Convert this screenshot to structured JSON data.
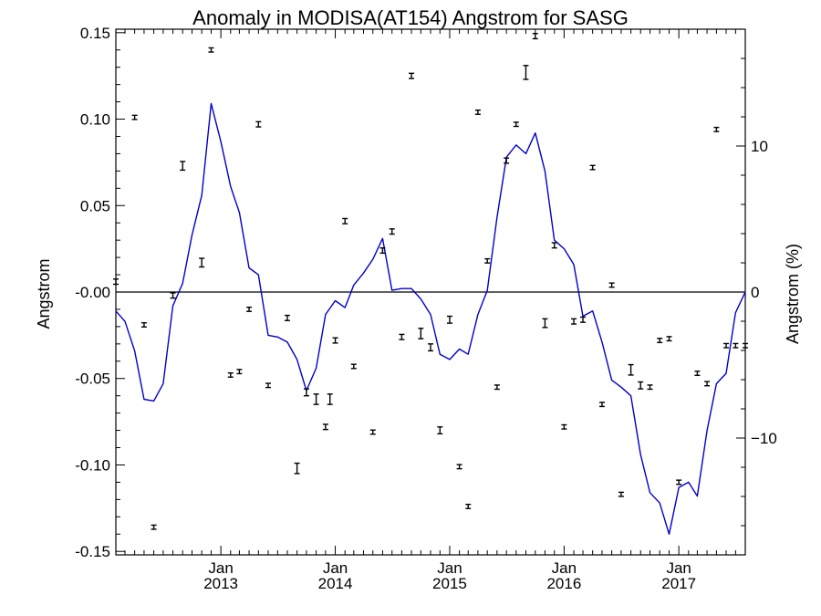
{
  "chart_data": {
    "type": "line",
    "title": "Anomaly in MODISA(AT154) Angstrom for SASG",
    "ylabel": "Angstrom",
    "y2label": "Angstrom (%)",
    "xlabel": "",
    "x_range": [
      "2012-02-01",
      "2017-08-01"
    ],
    "ylim": [
      -0.152,
      0.152
    ],
    "y2lim": [
      -18,
      18
    ],
    "y_ticks": [
      0.15,
      0.1,
      0.05,
      0.0,
      -0.05,
      -0.1,
      -0.15
    ],
    "y_tick_labels": [
      "0.15",
      "0.10",
      "0.05",
      "-0.00",
      "-0.05",
      "-0.10",
      "-0.15"
    ],
    "y2_ticks": [
      10,
      0,
      -10
    ],
    "y2_tick_labels": [
      "10",
      "0",
      "−10"
    ],
    "x_tick_labels": [
      {
        "month": "Jan",
        "year": "2013",
        "date": "2013-01-01"
      },
      {
        "month": "Jan",
        "year": "2014",
        "date": "2014-01-01"
      },
      {
        "month": "Jan",
        "year": "2015",
        "date": "2015-01-01"
      },
      {
        "month": "Jan",
        "year": "2016",
        "date": "2016-01-01"
      },
      {
        "month": "Jan",
        "year": "2017",
        "date": "2017-01-01"
      }
    ],
    "zero_line": 0,
    "grid": false,
    "colors": {
      "line": "#0000cc",
      "points": "#000000",
      "zero": "#000000"
    },
    "series": [
      {
        "type": "line",
        "x": [
          "2012-02-01",
          "2012-03-01",
          "2012-04-01",
          "2012-05-01",
          "2012-06-01",
          "2012-07-01",
          "2012-08-01",
          "2012-09-01",
          "2012-10-01",
          "2012-11-01",
          "2012-12-01",
          "2013-01-01",
          "2013-02-01",
          "2013-03-01",
          "2013-04-01",
          "2013-05-01",
          "2013-06-01",
          "2013-07-01",
          "2013-08-01",
          "2013-09-01",
          "2013-10-01",
          "2013-11-01",
          "2013-12-01",
          "2014-01-01",
          "2014-02-01",
          "2014-03-01",
          "2014-04-01",
          "2014-05-01",
          "2014-06-01",
          "2014-07-01",
          "2014-08-01",
          "2014-09-01",
          "2014-10-01",
          "2014-11-01",
          "2014-12-01",
          "2015-01-01",
          "2015-02-01",
          "2015-03-01",
          "2015-04-01",
          "2015-05-01",
          "2015-06-01",
          "2015-07-01",
          "2015-08-01",
          "2015-09-01",
          "2015-10-01",
          "2015-11-01",
          "2015-12-01",
          "2016-01-01",
          "2016-02-01",
          "2016-03-01",
          "2016-04-01",
          "2016-05-01",
          "2016-06-01",
          "2016-07-01",
          "2016-08-01",
          "2016-09-01",
          "2016-10-01",
          "2016-11-01",
          "2016-12-01",
          "2017-01-01",
          "2017-02-01",
          "2017-03-01",
          "2017-04-01",
          "2017-05-01",
          "2017-06-01",
          "2017-07-01",
          "2017-08-01"
        ],
        "values": [
          -0.011,
          -0.017,
          -0.034,
          -0.062,
          -0.063,
          -0.053,
          -0.008,
          0.005,
          0.033,
          0.056,
          0.109,
          0.087,
          0.061,
          0.046,
          0.014,
          0.01,
          -0.025,
          -0.026,
          -0.029,
          -0.039,
          -0.057,
          -0.044,
          -0.013,
          -0.005,
          -0.009,
          0.004,
          0.011,
          0.019,
          0.031,
          0.001,
          0.002,
          0.002,
          -0.004,
          -0.013,
          -0.036,
          -0.039,
          -0.033,
          -0.036,
          -0.013,
          0.001,
          0.043,
          0.078,
          0.085,
          0.08,
          0.092,
          0.07,
          0.03,
          0.025,
          0.016,
          -0.014,
          -0.011,
          -0.029,
          -0.051,
          -0.055,
          -0.06,
          -0.094,
          -0.116,
          -0.122,
          -0.14,
          -0.113,
          -0.11,
          -0.118,
          -0.08,
          -0.053,
          -0.047,
          -0.012,
          0.0
        ]
      },
      {
        "type": "scatter",
        "errorbar": true,
        "x": [
          "2012-02-01",
          "2012-04-01",
          "2012-05-01",
          "2012-06-01",
          "2012-08-01",
          "2012-09-01",
          "2012-11-01",
          "2012-12-01",
          "2013-02-01",
          "2013-03-01",
          "2013-04-01",
          "2013-05-01",
          "2013-06-01",
          "2013-08-01",
          "2013-09-01",
          "2013-10-01",
          "2013-11-01",
          "2013-12-01",
          "2013-12-15",
          "2014-01-01",
          "2014-02-01",
          "2014-03-01",
          "2014-05-01",
          "2014-06-01",
          "2014-07-01",
          "2014-08-01",
          "2014-09-01",
          "2014-10-01",
          "2014-11-01",
          "2014-12-01",
          "2015-01-01",
          "2015-02-01",
          "2015-03-01",
          "2015-04-01",
          "2015-05-01",
          "2015-06-01",
          "2015-07-01",
          "2015-08-01",
          "2015-09-01",
          "2015-10-01",
          "2015-11-01",
          "2015-12-01",
          "2016-01-01",
          "2016-02-01",
          "2016-03-01",
          "2016-04-01",
          "2016-05-01",
          "2016-06-01",
          "2016-07-01",
          "2016-08-01",
          "2016-09-01",
          "2016-10-01",
          "2016-11-01",
          "2016-12-01",
          "2017-01-01",
          "2017-03-01",
          "2017-04-01",
          "2017-05-01",
          "2017-06-01",
          "2017-07-01",
          "2017-08-01"
        ],
        "values": [
          0.006,
          0.101,
          -0.019,
          -0.136,
          -0.002,
          0.073,
          0.017,
          0.14,
          -0.048,
          -0.046,
          -0.01,
          0.097,
          -0.054,
          -0.015,
          -0.102,
          -0.058,
          -0.062,
          -0.078,
          -0.062,
          -0.028,
          0.041,
          -0.043,
          -0.081,
          0.024,
          0.035,
          -0.026,
          0.125,
          -0.024,
          -0.032,
          -0.08,
          -0.016,
          -0.101,
          -0.124,
          0.104,
          0.018,
          -0.055,
          0.076,
          0.097,
          0.127,
          0.148,
          -0.018,
          0.027,
          -0.078,
          -0.017,
          -0.016,
          0.072,
          -0.065,
          0.004,
          -0.117,
          -0.045,
          -0.054,
          -0.055,
          -0.028,
          -0.027,
          -0.11,
          -0.047,
          -0.053,
          0.094,
          -0.031,
          -0.031,
          -0.031
        ],
        "errors": [
          0.0015,
          0.0012,
          0.0012,
          0.0012,
          0.0015,
          0.0025,
          0.0025,
          0.0012,
          0.0012,
          0.0012,
          0.0012,
          0.0015,
          0.0012,
          0.0015,
          0.003,
          0.002,
          0.003,
          0.0015,
          0.003,
          0.0015,
          0.0015,
          0.0012,
          0.0012,
          0.0015,
          0.0015,
          0.0015,
          0.0015,
          0.003,
          0.002,
          0.002,
          0.002,
          0.0012,
          0.0012,
          0.0012,
          0.0012,
          0.0012,
          0.0015,
          0.0012,
          0.004,
          0.0015,
          0.0025,
          0.0015,
          0.0012,
          0.0015,
          0.0015,
          0.0012,
          0.0012,
          0.0012,
          0.0012,
          0.003,
          0.002,
          0.0012,
          0.0012,
          0.0012,
          0.0012,
          0.0012,
          0.0012,
          0.0012,
          0.0012,
          0.0012,
          0.0012
        ]
      }
    ]
  }
}
